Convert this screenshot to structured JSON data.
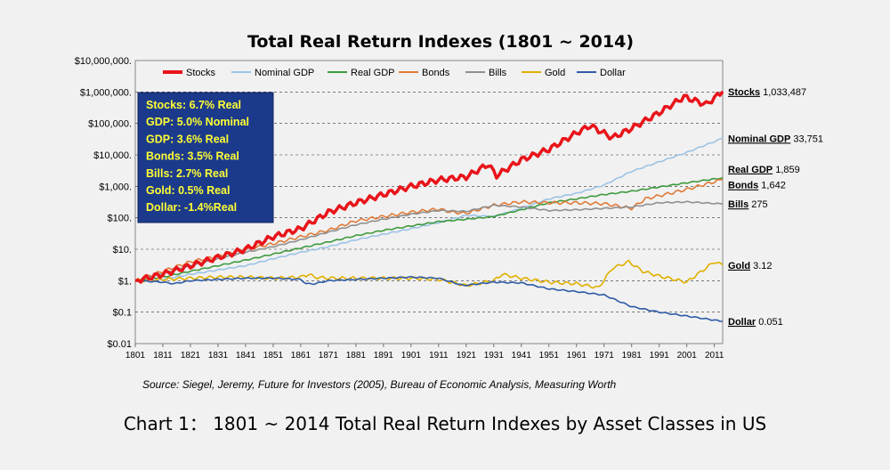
{
  "chart_data": {
    "type": "line",
    "title": "Total Real Return Indexes (1801 ~ 2014)",
    "y_scale": "log",
    "ylim": [
      0.01,
      10000000
    ],
    "xlim": [
      1801,
      2014
    ],
    "y_ticks": [
      "$10,000,000.",
      "$1,000,000.",
      "$100,000.",
      "$10,000.",
      "$1,000.",
      "$100.",
      "$10.",
      "$1.",
      "$0.1",
      "$0.01"
    ],
    "x_ticks": [
      "1801",
      "1811",
      "1821",
      "1831",
      "1841",
      "1851",
      "1861",
      "1871",
      "1881",
      "1891",
      "1901",
      "1911",
      "1921",
      "1931",
      "1941",
      "1951",
      "1961",
      "1971",
      "1981",
      "1991",
      "2001",
      "2011"
    ],
    "grid": true,
    "legend_position": "top",
    "series": [
      {
        "name": "Stocks",
        "color": "#e8141a",
        "points": [
          [
            1801,
            1
          ],
          [
            1811,
            1.6
          ],
          [
            1821,
            3
          ],
          [
            1831,
            5.5
          ],
          [
            1841,
            10
          ],
          [
            1851,
            25
          ],
          [
            1861,
            45
          ],
          [
            1871,
            150
          ],
          [
            1881,
            300
          ],
          [
            1891,
            550
          ],
          [
            1901,
            1000
          ],
          [
            1911,
            1600
          ],
          [
            1921,
            2000
          ],
          [
            1929,
            5000
          ],
          [
            1932,
            2200
          ],
          [
            1941,
            7000
          ],
          [
            1951,
            15000
          ],
          [
            1961,
            50000
          ],
          [
            1966,
            85000
          ],
          [
            1974,
            35000
          ],
          [
            1981,
            70000
          ],
          [
            1991,
            220000
          ],
          [
            2000,
            700000
          ],
          [
            2008,
            400000
          ],
          [
            2014,
            1033487
          ]
        ],
        "end_label": "Stocks",
        "end_value": "1,033,487"
      },
      {
        "name": "Nominal GDP",
        "color": "#9dc3e6",
        "points": [
          [
            1801,
            1
          ],
          [
            1811,
            1.1
          ],
          [
            1821,
            1.6
          ],
          [
            1831,
            2.2
          ],
          [
            1841,
            3
          ],
          [
            1851,
            5
          ],
          [
            1861,
            8
          ],
          [
            1871,
            12
          ],
          [
            1881,
            20
          ],
          [
            1891,
            30
          ],
          [
            1901,
            45
          ],
          [
            1911,
            70
          ],
          [
            1921,
            120
          ],
          [
            1931,
            110
          ],
          [
            1941,
            200
          ],
          [
            1951,
            400
          ],
          [
            1961,
            600
          ],
          [
            1971,
            1100
          ],
          [
            1981,
            3000
          ],
          [
            1991,
            6000
          ],
          [
            2001,
            12000
          ],
          [
            2014,
            33751
          ]
        ],
        "end_label": "Nominal GDP",
        "end_value": "33,751"
      },
      {
        "name": "Real GDP",
        "color": "#3e9a3e",
        "points": [
          [
            1801,
            1
          ],
          [
            1811,
            1.3
          ],
          [
            1821,
            2
          ],
          [
            1831,
            3
          ],
          [
            1841,
            4.5
          ],
          [
            1851,
            7
          ],
          [
            1861,
            11
          ],
          [
            1871,
            17
          ],
          [
            1881,
            27
          ],
          [
            1891,
            40
          ],
          [
            1901,
            55
          ],
          [
            1911,
            75
          ],
          [
            1921,
            90
          ],
          [
            1931,
            110
          ],
          [
            1941,
            180
          ],
          [
            1951,
            300
          ],
          [
            1961,
            400
          ],
          [
            1971,
            550
          ],
          [
            1981,
            700
          ],
          [
            1991,
            950
          ],
          [
            2001,
            1300
          ],
          [
            2014,
            1859
          ]
        ],
        "end_label": "Real GDP",
        "end_value": "1,859"
      },
      {
        "name": "Bonds",
        "color": "#e07b39",
        "points": [
          [
            1801,
            1
          ],
          [
            1811,
            2
          ],
          [
            1821,
            4
          ],
          [
            1831,
            6
          ],
          [
            1841,
            10
          ],
          [
            1851,
            15
          ],
          [
            1861,
            25
          ],
          [
            1871,
            40
          ],
          [
            1881,
            80
          ],
          [
            1891,
            110
          ],
          [
            1901,
            150
          ],
          [
            1911,
            190
          ],
          [
            1916,
            150
          ],
          [
            1921,
            140
          ],
          [
            1931,
            250
          ],
          [
            1941,
            320
          ],
          [
            1951,
            300
          ],
          [
            1961,
            300
          ],
          [
            1971,
            280
          ],
          [
            1981,
            200
          ],
          [
            1986,
            400
          ],
          [
            1991,
            500
          ],
          [
            2001,
            800
          ],
          [
            2014,
            1642
          ]
        ],
        "end_label": "Bonds",
        "end_value": "1,642"
      },
      {
        "name": "Bills",
        "color": "#909090",
        "points": [
          [
            1801,
            1
          ],
          [
            1811,
            1.7
          ],
          [
            1821,
            3
          ],
          [
            1831,
            5
          ],
          [
            1841,
            8
          ],
          [
            1851,
            12
          ],
          [
            1861,
            20
          ],
          [
            1871,
            35
          ],
          [
            1881,
            60
          ],
          [
            1891,
            90
          ],
          [
            1901,
            130
          ],
          [
            1911,
            170
          ],
          [
            1921,
            160
          ],
          [
            1931,
            250
          ],
          [
            1941,
            220
          ],
          [
            1951,
            170
          ],
          [
            1961,
            180
          ],
          [
            1971,
            200
          ],
          [
            1981,
            220
          ],
          [
            1991,
            300
          ],
          [
            2001,
            320
          ],
          [
            2014,
            275
          ]
        ],
        "end_label": "Bills",
        "end_value": "275"
      },
      {
        "name": "Gold",
        "color": "#e0b000",
        "points": [
          [
            1801,
            1
          ],
          [
            1811,
            1.1
          ],
          [
            1821,
            1.2
          ],
          [
            1831,
            1.3
          ],
          [
            1841,
            1.3
          ],
          [
            1851,
            1.2
          ],
          [
            1861,
            1.3
          ],
          [
            1864,
            1.6
          ],
          [
            1866,
            1.3
          ],
          [
            1871,
            1.2
          ],
          [
            1881,
            1.2
          ],
          [
            1891,
            1.2
          ],
          [
            1901,
            1.2
          ],
          [
            1911,
            1.1
          ],
          [
            1921,
            0.7
          ],
          [
            1931,
            1
          ],
          [
            1934,
            1.6
          ],
          [
            1941,
            1.2
          ],
          [
            1951,
            0.9
          ],
          [
            1961,
            0.8
          ],
          [
            1969,
            0.6
          ],
          [
            1974,
            2.5
          ],
          [
            1980,
            4
          ],
          [
            1985,
            2
          ],
          [
            1991,
            1.4
          ],
          [
            2001,
            0.9
          ],
          [
            2011,
            4
          ],
          [
            2014,
            3.12
          ]
        ],
        "end_label": "Gold",
        "end_value": "3.12"
      },
      {
        "name": "Dollar",
        "color": "#2e5aa8",
        "points": [
          [
            1801,
            1
          ],
          [
            1811,
            0.9
          ],
          [
            1815,
            0.8
          ],
          [
            1821,
            1
          ],
          [
            1831,
            1.1
          ],
          [
            1841,
            1.2
          ],
          [
            1851,
            1.2
          ],
          [
            1861,
            1.1
          ],
          [
            1863,
            0.8
          ],
          [
            1866,
            0.8
          ],
          [
            1871,
            1
          ],
          [
            1881,
            1.1
          ],
          [
            1891,
            1.2
          ],
          [
            1901,
            1.3
          ],
          [
            1911,
            1.2
          ],
          [
            1920,
            0.7
          ],
          [
            1931,
            0.9
          ],
          [
            1941,
            0.85
          ],
          [
            1951,
            0.55
          ],
          [
            1961,
            0.45
          ],
          [
            1971,
            0.35
          ],
          [
            1981,
            0.15
          ],
          [
            1991,
            0.1
          ],
          [
            2001,
            0.075
          ],
          [
            2014,
            0.051
          ]
        ],
        "end_label": "Dollar",
        "end_value": "0.051"
      }
    ],
    "annotation_box": [
      "Stocks: 6.7% Real",
      "GDP: 5.0% Nominal",
      "GDP: 3.6% Real",
      "Bonds: 3.5% Real",
      "Bills:    2.7% Real",
      "Gold:   0.5% Real",
      "Dollar: -1.4%Real"
    ],
    "source": "Source: Siegel, Jeremy, Future for Investors (2005), Bureau of Economic Analysis, Measuring Worth"
  },
  "caption": "Chart 1： 1801 ~ 2014 Total Real Return Indexes by Asset Classes in US"
}
